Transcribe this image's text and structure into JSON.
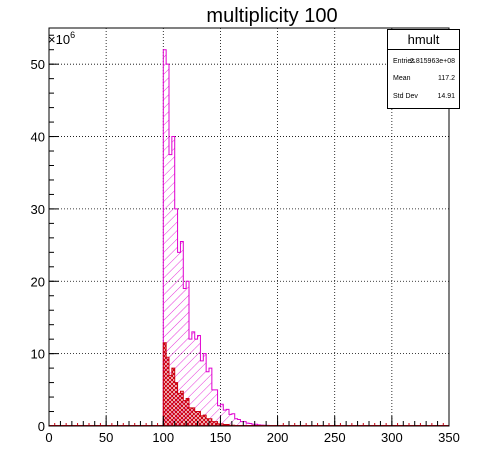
{
  "chart_data": {
    "type": "histogram",
    "title": "multiplicity 100",
    "y_exponent_label": "×10",
    "y_exponent_power": "6",
    "xlim": [
      0,
      350
    ],
    "ylim": [
      0,
      55
    ],
    "x_ticks": [
      0,
      50,
      100,
      150,
      200,
      250,
      300,
      350
    ],
    "y_ticks": [
      0,
      10,
      20,
      30,
      40,
      50
    ],
    "grid": true,
    "bin_width": 2.5,
    "bin_start": 100,
    "series": [
      {
        "color": "#e000d0",
        "fill": "diagonal-hatch",
        "values": [
          52,
          50,
          37.5,
          40,
          30,
          24,
          25.5,
          19,
          20,
          12,
          13,
          12,
          12.5,
          9,
          10,
          7.5,
          8,
          5,
          5,
          2.8,
          3,
          2.2,
          2.3,
          1.6,
          1.7,
          1,
          0.9,
          0.6,
          0.6,
          0.4,
          0.35,
          0.25,
          0.25,
          0.15,
          0.12,
          0.1,
          0.08,
          0.05
        ]
      },
      {
        "color": "#cc0010",
        "fill": "cross-hatch",
        "values": [
          11.5,
          9.5,
          7,
          8,
          6,
          4.5,
          4.8,
          3.5,
          3.8,
          2.5,
          2.5,
          2,
          2,
          1.4,
          1.5,
          1,
          1,
          0.6,
          0.6,
          0.3,
          0.3,
          0.2,
          0.2,
          0.1,
          0.1,
          0.05
        ]
      }
    ]
  },
  "stats": {
    "name": "hmult",
    "rows": [
      {
        "key": "Entries",
        "value": "2.815963e+08"
      },
      {
        "key": "Mean",
        "value": "117.2"
      },
      {
        "key": "Std Dev",
        "value": "14.91"
      }
    ]
  }
}
